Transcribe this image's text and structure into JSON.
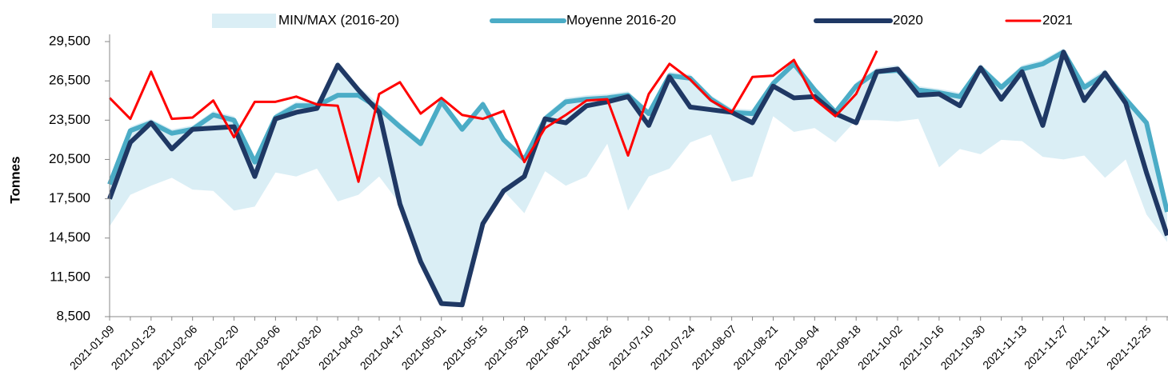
{
  "chart_data": {
    "type": "line",
    "y_label": "Tonnes",
    "legend": "top",
    "categories": [
      "2021-01-09",
      null,
      "2021-01-23",
      null,
      "2021-02-06",
      null,
      "2021-02-20",
      null,
      "2021-03-06",
      null,
      "2021-03-20",
      null,
      "2021-04-03",
      null,
      "2021-04-17",
      null,
      "2021-05-01",
      null,
      "2021-05-15",
      null,
      "2021-05-29",
      null,
      "2021-06-12",
      null,
      "2021-06-26",
      null,
      "2021-07-10",
      null,
      "2021-07-24",
      null,
      "2021-08-07",
      null,
      "2021-08-21",
      null,
      "2021-09-04",
      null,
      "2021-09-18",
      null,
      "2021-10-02",
      null,
      "2021-10-16",
      null,
      "2021-10-30",
      null,
      "2021-11-13",
      null,
      "2021-11-27",
      null,
      "2021-12-11",
      null,
      "2021-12-25",
      null
    ],
    "ylim": [
      8500,
      29500
    ],
    "yticks": [
      {
        "value": 8500,
        "label": "8,500"
      },
      {
        "value": 11500,
        "label": "11,500"
      },
      {
        "value": 14500,
        "label": "14,500"
      },
      {
        "value": 17500,
        "label": "17,500"
      },
      {
        "value": 20500,
        "label": "20,500"
      },
      {
        "value": 23500,
        "label": "23,500"
      },
      {
        "value": 26500,
        "label": "26,500"
      },
      {
        "value": 29500,
        "label": "29,500"
      }
    ],
    "series": [
      {
        "name": "MIN/MAX (2016-20)",
        "type": "band",
        "color": "#daeef5",
        "max": [
          19000,
          23000,
          23600,
          22800,
          23100,
          24200,
          23800,
          20600,
          24000,
          24900,
          24900,
          28000,
          26100,
          24700,
          23300,
          22000,
          25200,
          23100,
          25000,
          22300,
          20800,
          23900,
          25200,
          25400,
          25500,
          25700,
          24300,
          27200,
          27000,
          25400,
          24400,
          24300,
          26600,
          28100,
          26100,
          24400,
          26400,
          27500,
          27700,
          26100,
          25900,
          25600,
          27800,
          26300,
          27700,
          28100,
          29000,
          26300,
          27400,
          25400,
          23600,
          16800
        ],
        "min": [
          15400,
          17800,
          18500,
          19100,
          18200,
          18100,
          16600,
          16900,
          19500,
          19200,
          19800,
          17300,
          17800,
          19200,
          17100,
          12700,
          9500,
          9400,
          15600,
          18100,
          16400,
          19600,
          18500,
          19200,
          21700,
          16600,
          19200,
          19800,
          21800,
          22400,
          18800,
          19200,
          23800,
          22600,
          22900,
          21800,
          23500,
          23500,
          23400,
          23600,
          19900,
          21300,
          20900,
          22000,
          21900,
          20700,
          20500,
          20800,
          19100,
          20500,
          16300,
          14200
        ]
      },
      {
        "name": "Moyenne 2016-20",
        "color": "#4bacc6",
        "width": 6,
        "values": [
          18600,
          22700,
          23300,
          22500,
          22800,
          23900,
          23500,
          20300,
          23700,
          24600,
          24600,
          25400,
          25400,
          24400,
          23000,
          21700,
          24900,
          22800,
          24700,
          22000,
          20500,
          23600,
          24900,
          25100,
          25200,
          25400,
          24000,
          26900,
          26700,
          25100,
          24100,
          24000,
          26300,
          27800,
          25800,
          24100,
          26100,
          27200,
          27300,
          25800,
          25600,
          25300,
          27500,
          26000,
          27400,
          27800,
          28700,
          26000,
          27000,
          25100,
          23300,
          16500
        ]
      },
      {
        "name": "2020",
        "color": "#1f3864",
        "width": 6,
        "values": [
          17500,
          21800,
          23300,
          21300,
          22800,
          22900,
          23000,
          19200,
          23600,
          24100,
          24400,
          27700,
          25800,
          24100,
          17100,
          12700,
          9500,
          9400,
          15600,
          18100,
          19200,
          23600,
          23300,
          24600,
          24900,
          25300,
          23100,
          26800,
          24500,
          24300,
          24100,
          23300,
          26100,
          25200,
          25300,
          24000,
          23300,
          27200,
          27400,
          25400,
          25500,
          24600,
          27500,
          25100,
          27200,
          23100,
          28700,
          25000,
          27100,
          24800,
          19500,
          14700
        ]
      },
      {
        "name": "2021",
        "color": "#ff0000",
        "width": 3,
        "values": [
          25200,
          23600,
          27200,
          23600,
          23700,
          25000,
          22200,
          24900,
          24900,
          25300,
          24700,
          24600,
          18800,
          25500,
          26400,
          24000,
          25200,
          23900,
          23600,
          24200,
          20300,
          22900,
          23900,
          25000,
          25100,
          20800,
          25500,
          27800,
          26600,
          25000,
          24100,
          26800,
          26900,
          28100,
          25100,
          23800,
          25500,
          28800,
          null,
          null,
          null,
          null,
          null,
          null,
          null,
          null,
          null,
          null,
          null,
          null,
          null,
          null
        ]
      }
    ]
  }
}
